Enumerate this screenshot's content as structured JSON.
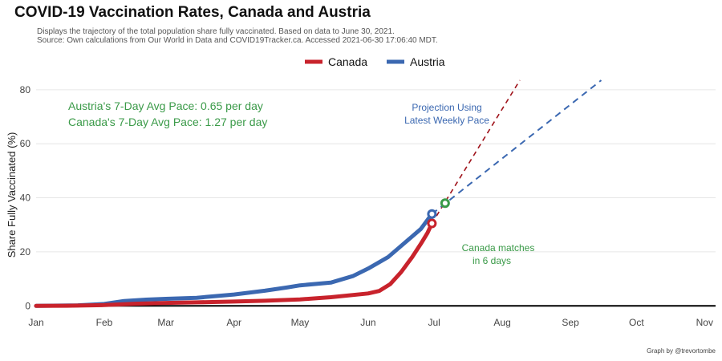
{
  "header": {
    "title": "COVID-19 Vaccination Rates, Canada and Austria",
    "subtitle_line1": "Displays the trajectory of the total population share fully vaccinated. Based on data to June 30, 2021.",
    "subtitle_line2": "Source: Own calculations from Our World in Data and COVID19Tracker.ca. Accessed 2021-06-30 17:06:40 MDT."
  },
  "caption": "Graph by @trevortombe",
  "colors": {
    "canada": "#c8232c",
    "austria": "#3b68b1",
    "canada_projection": "#a0141c",
    "annotation_green": "#3a9a48",
    "grid": "#e6e6e6",
    "axis": "#000000"
  },
  "annotations": {
    "austria_pace": "Austria's 7-Day Avg Pace: 0.65 per day",
    "canada_pace": "Canada's 7-Day Avg Pace: 1.27 per day",
    "projection_line1": "Projection Using",
    "projection_line2": "Latest Weekly Pace",
    "match_line1": "Canada matches",
    "match_line2": "in 6 days"
  },
  "chart_data": {
    "type": "line",
    "title": "COVID-19 Vaccination Rates, Canada and Austria",
    "xlabel": "",
    "ylabel": "Share Fully Vaccinated (%)",
    "x_ticks": [
      "Jan",
      "Feb",
      "Mar",
      "Apr",
      "May",
      "Jun",
      "Jul",
      "Aug",
      "Sep",
      "Oct",
      "Nov"
    ],
    "x_tick_dates": [
      "2021-01-01",
      "2021-02-01",
      "2021-03-01",
      "2021-04-01",
      "2021-05-01",
      "2021-06-01",
      "2021-07-01",
      "2021-08-01",
      "2021-09-01",
      "2021-10-01",
      "2021-11-01"
    ],
    "xlim": [
      "2021-01-01",
      "2021-11-06"
    ],
    "y_ticks": [
      0,
      20,
      40,
      60,
      80
    ],
    "ylim": [
      -2,
      85
    ],
    "grid": "horizontal",
    "legend": "top-center",
    "series": [
      {
        "name": "Canada",
        "color": "#c8232c",
        "points": [
          [
            "2021-01-01",
            0
          ],
          [
            "2021-01-15",
            0.05
          ],
          [
            "2021-02-01",
            0.3
          ],
          [
            "2021-02-15",
            0.8
          ],
          [
            "2021-03-01",
            1.1
          ],
          [
            "2021-03-15",
            1.3
          ],
          [
            "2021-04-01",
            1.6
          ],
          [
            "2021-04-15",
            1.9
          ],
          [
            "2021-05-01",
            2.4
          ],
          [
            "2021-05-15",
            3.2
          ],
          [
            "2021-06-01",
            4.6
          ],
          [
            "2021-06-06",
            5.5
          ],
          [
            "2021-06-11",
            8
          ],
          [
            "2021-06-16",
            12.5
          ],
          [
            "2021-06-21",
            18
          ],
          [
            "2021-06-25",
            23
          ],
          [
            "2021-06-28",
            27
          ],
          [
            "2021-06-30",
            30.5
          ]
        ]
      },
      {
        "name": "Austria",
        "color": "#3b68b1",
        "points": [
          [
            "2021-01-01",
            0
          ],
          [
            "2021-01-20",
            0.2
          ],
          [
            "2021-02-01",
            0.7
          ],
          [
            "2021-02-10",
            1.8
          ],
          [
            "2021-02-20",
            2.3
          ],
          [
            "2021-03-01",
            2.6
          ],
          [
            "2021-03-15",
            3.0
          ],
          [
            "2021-04-01",
            4.2
          ],
          [
            "2021-04-15",
            5.6
          ],
          [
            "2021-04-25",
            6.8
          ],
          [
            "2021-05-01",
            7.6
          ],
          [
            "2021-05-15",
            8.6
          ],
          [
            "2021-05-25",
            11.0
          ],
          [
            "2021-06-01",
            13.8
          ],
          [
            "2021-06-10",
            18.0
          ],
          [
            "2021-06-15",
            21.5
          ],
          [
            "2021-06-20",
            25.0
          ],
          [
            "2021-06-25",
            28.5
          ],
          [
            "2021-06-30",
            34.0
          ]
        ]
      }
    ],
    "projections": [
      {
        "series": "Canada",
        "pace_per_day": 1.27,
        "from": [
          "2021-06-30",
          30.5
        ],
        "to": [
          "2021-08-09",
          83.5
        ]
      },
      {
        "series": "Austria",
        "pace_per_day": 0.65,
        "from": [
          "2021-06-30",
          34.0
        ],
        "to": [
          "2021-09-15",
          83.5
        ]
      }
    ],
    "markers": [
      {
        "label": "Canada latest",
        "date": "2021-06-30",
        "value": 30.5
      },
      {
        "label": "Austria latest",
        "date": "2021-06-30",
        "value": 34.0
      },
      {
        "label": "Match point",
        "date": "2021-07-06",
        "value": 38.0
      }
    ]
  }
}
